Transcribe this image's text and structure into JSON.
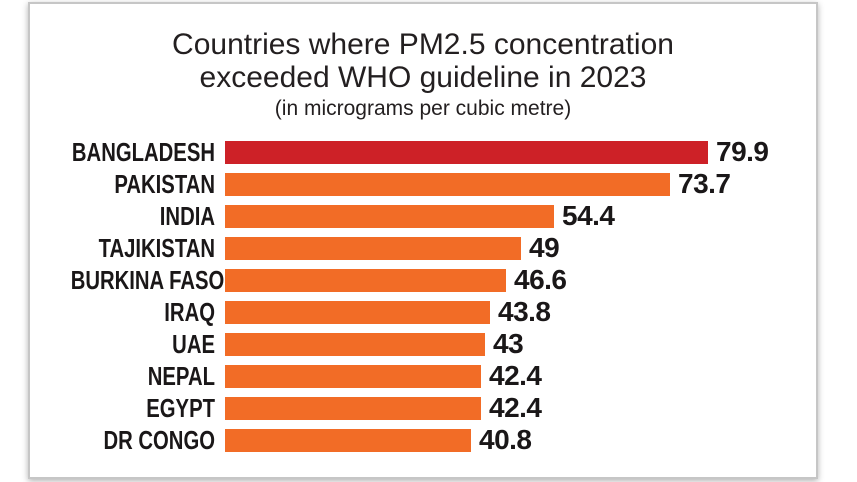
{
  "chart": {
    "title_lines": [
      "Countries where PM2.5 concentration",
      "exceeded WHO guideline in 2023"
    ],
    "subtitle": "(in micrograms per cubic metre)"
  },
  "chart_data": {
    "type": "bar",
    "orientation": "horizontal",
    "title": "Countries where PM2.5 concentration exceeded WHO guideline in 2023",
    "subtitle": "(in micrograms per cubic metre)",
    "unit": "micrograms per cubic metre",
    "categories": [
      "BANGLADESH",
      "PAKISTAN",
      "INDIA",
      "TAJIKISTAN",
      "BURKINA FASO",
      "IRAQ",
      "UAE",
      "NEPAL",
      "EGYPT",
      "DR CONGO"
    ],
    "values": [
      79.9,
      73.7,
      54.4,
      49,
      46.6,
      43.8,
      43,
      42.4,
      42.4,
      40.8
    ],
    "value_labels": [
      "79.9",
      "73.7",
      "54.4",
      "49",
      "46.6",
      "43.8",
      "43",
      "42.4",
      "42.4",
      "40.8"
    ],
    "xlim": [
      0,
      80
    ],
    "grid": false,
    "legend": false,
    "data_labels": "end-of-bar",
    "highlight_index": 0,
    "colors": {
      "bar_default": "#F26C26",
      "bar_highlight": "#CD2127",
      "text": "#231F20",
      "card_border": "#C6C6C6",
      "background": "#FFFFFF"
    }
  }
}
